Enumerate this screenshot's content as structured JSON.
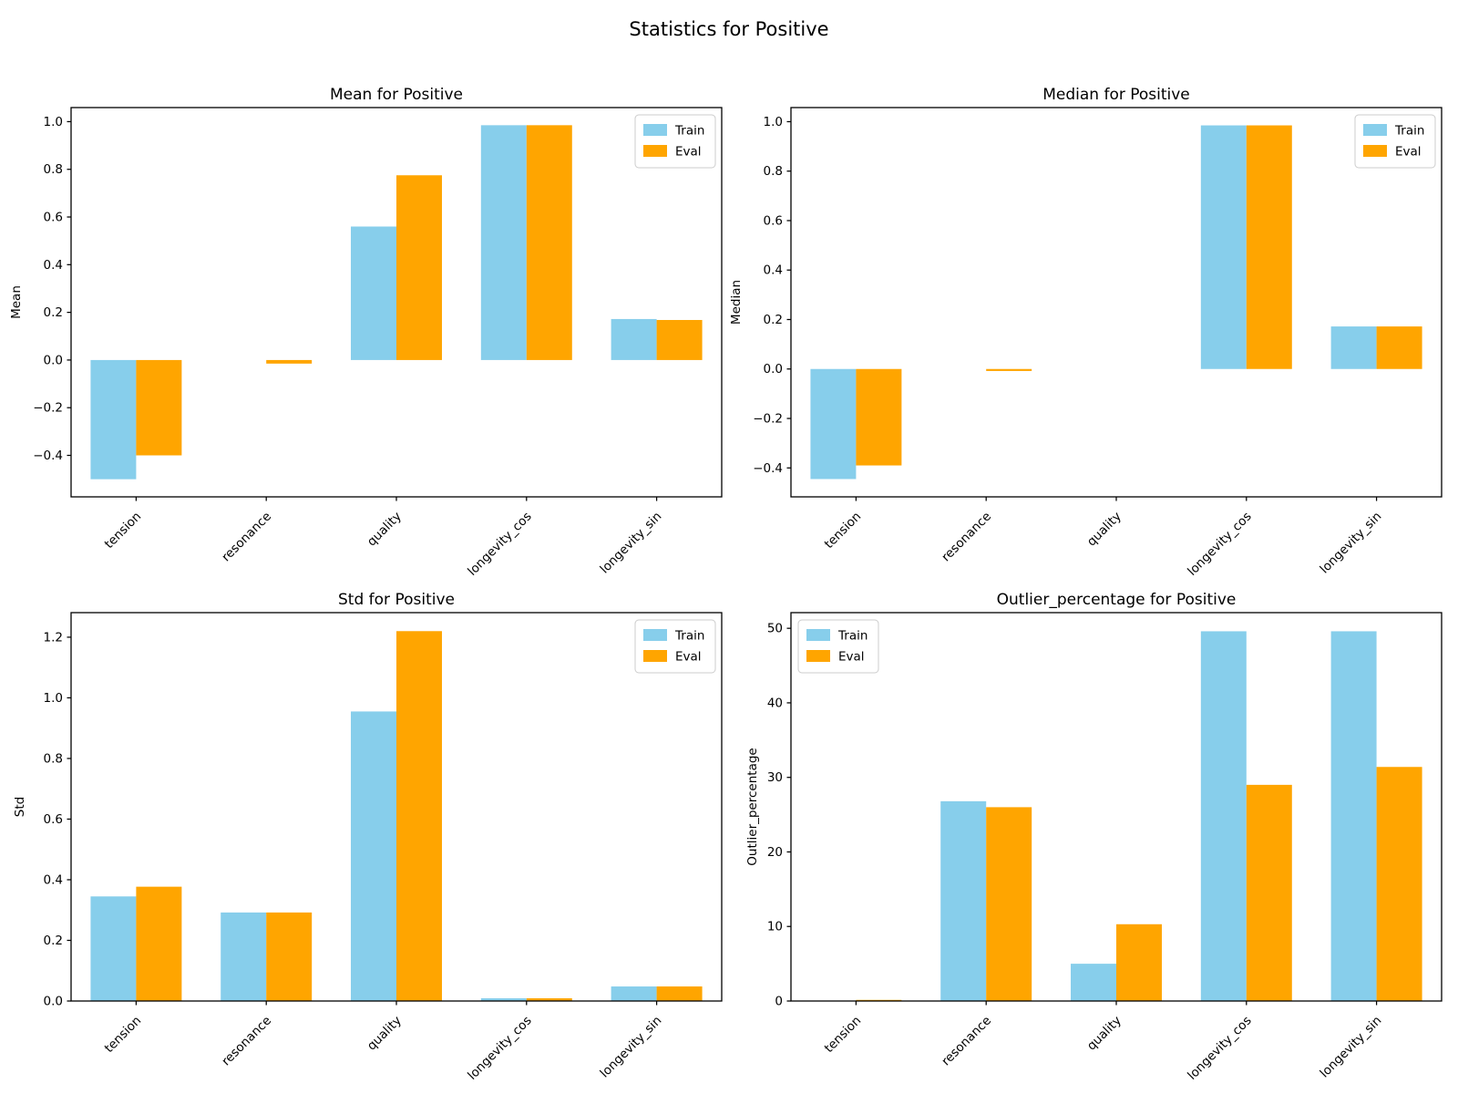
{
  "suptitle": "Statistics for Positive",
  "legend": {
    "train_label": "Train",
    "eval_label": "Eval"
  },
  "colors": {
    "train": "#87CEEB",
    "eval": "#FFA500",
    "text": "#000000",
    "spine": "#000000",
    "legend_border": "#cccccc",
    "background": "#ffffff"
  },
  "categories": [
    "tension",
    "resonance",
    "quality",
    "longevity_cos",
    "longevity_sin"
  ],
  "chart_data": [
    {
      "type": "bar",
      "title": "Mean for Positive",
      "ylabel": "Mean",
      "xlabel": "",
      "categories": [
        "tension",
        "resonance",
        "quality",
        "longevity_cos",
        "longevity_sin"
      ],
      "series": [
        {
          "name": "Train",
          "values": [
            -0.5,
            0.0,
            0.56,
            0.985,
            0.172
          ]
        },
        {
          "name": "Eval",
          "values": [
            -0.4,
            -0.015,
            0.775,
            0.985,
            0.168
          ]
        }
      ],
      "ylim": [
        -0.574,
        1.059
      ],
      "yticks": [
        1.0,
        0.8,
        0.6,
        0.4,
        0.2,
        0.0,
        -0.2,
        -0.4
      ],
      "ytick_decimals": 1,
      "legend_position": "top-right",
      "grid": false
    },
    {
      "type": "bar",
      "title": "Median for Positive",
      "ylabel": "Median",
      "xlabel": "",
      "categories": [
        "tension",
        "resonance",
        "quality",
        "longevity_cos",
        "longevity_sin"
      ],
      "series": [
        {
          "name": "Train",
          "values": [
            -0.445,
            0.0,
            0.0,
            0.985,
            0.172
          ]
        },
        {
          "name": "Eval",
          "values": [
            -0.39,
            -0.008,
            0.0,
            0.985,
            0.172
          ]
        }
      ],
      "ylim": [
        -0.517,
        1.057
      ],
      "yticks": [
        1.0,
        0.8,
        0.6,
        0.4,
        0.2,
        0.0,
        -0.2,
        -0.4
      ],
      "ytick_decimals": 1,
      "legend_position": "top-right",
      "grid": false
    },
    {
      "type": "bar",
      "title": "Std for Positive",
      "ylabel": "Std",
      "xlabel": "",
      "categories": [
        "tension",
        "resonance",
        "quality",
        "longevity_cos",
        "longevity_sin"
      ],
      "series": [
        {
          "name": "Train",
          "values": [
            0.345,
            0.292,
            0.955,
            0.009,
            0.048
          ]
        },
        {
          "name": "Eval",
          "values": [
            0.377,
            0.292,
            1.22,
            0.009,
            0.048
          ]
        }
      ],
      "ylim": [
        0,
        1.281
      ],
      "yticks": [
        0.0,
        0.2,
        0.4,
        0.6,
        0.8,
        1.0,
        1.2
      ],
      "ytick_decimals": 1,
      "legend_position": "top-right",
      "grid": false
    },
    {
      "type": "bar",
      "title": "Outlier_percentage for Positive",
      "ylabel": "Outlier_percentage",
      "xlabel": "",
      "categories": [
        "tension",
        "resonance",
        "quality",
        "longevity_cos",
        "longevity_sin"
      ],
      "series": [
        {
          "name": "Train",
          "values": [
            0.0,
            26.8,
            5.0,
            49.6,
            49.6
          ]
        },
        {
          "name": "Eval",
          "values": [
            0.15,
            26.0,
            10.3,
            29.0,
            31.4
          ]
        }
      ],
      "ylim": [
        0,
        52.1
      ],
      "yticks": [
        0,
        10,
        20,
        30,
        40,
        50
      ],
      "ytick_decimals": 0,
      "legend_position": "top-left",
      "grid": false
    }
  ]
}
